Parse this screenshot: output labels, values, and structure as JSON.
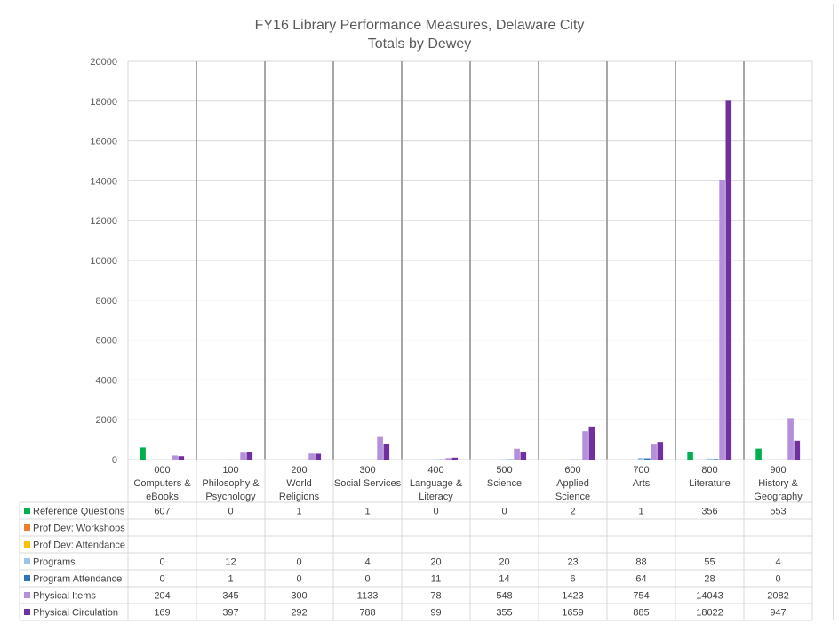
{
  "chart_data": {
    "type": "bar",
    "title": "FY16 Library Performance Measures, Delaware City",
    "subtitle": "Totals by Dewey",
    "ylim": [
      0,
      20000
    ],
    "yticks": [
      "0",
      "2000",
      "4000",
      "6000",
      "8000",
      "10000",
      "12000",
      "14000",
      "16000",
      "18000",
      "20000"
    ],
    "categories": [
      [
        "000",
        "Computers &",
        "eBooks"
      ],
      [
        "100",
        "Philosophy &",
        "Psychology"
      ],
      [
        "200",
        "World",
        "Religions"
      ],
      [
        "300",
        "Social Services"
      ],
      [
        "400",
        "Language &",
        "Literacy"
      ],
      [
        "500",
        "Science"
      ],
      [
        "600",
        "Applied",
        "Science"
      ],
      [
        "700",
        "Arts"
      ],
      [
        "800",
        "Literature"
      ],
      [
        "900",
        "History &",
        "Geography"
      ]
    ],
    "series": [
      {
        "name": "Reference Questions",
        "color": "#00b050",
        "values": [
          607,
          0,
          1,
          1,
          0,
          0,
          2,
          1,
          356,
          553
        ]
      },
      {
        "name": "Prof Dev: Workshops",
        "color": "#ed7d31",
        "values": [
          null,
          null,
          null,
          null,
          null,
          null,
          null,
          null,
          null,
          null
        ]
      },
      {
        "name": "Prof Dev: Attendance",
        "color": "#ffc000",
        "values": [
          null,
          null,
          null,
          null,
          null,
          null,
          null,
          null,
          null,
          null
        ]
      },
      {
        "name": "Programs",
        "color": "#9dc3e6",
        "values": [
          0,
          12,
          0,
          4,
          20,
          20,
          23,
          88,
          55,
          4
        ]
      },
      {
        "name": "Program Attendance",
        "color": "#2e75b6",
        "values": [
          0,
          1,
          0,
          0,
          11,
          14,
          6,
          64,
          28,
          0
        ]
      },
      {
        "name": "Physical Items",
        "color": "#b48fdb",
        "values": [
          204,
          345,
          300,
          1133,
          78,
          548,
          1423,
          754,
          14043,
          2082
        ]
      },
      {
        "name": "Physical Circulation",
        "color": "#7030a0",
        "values": [
          169,
          397,
          292,
          788,
          99,
          355,
          1659,
          885,
          18022,
          947
        ]
      }
    ],
    "grid": true,
    "legend": "data-table-left"
  }
}
